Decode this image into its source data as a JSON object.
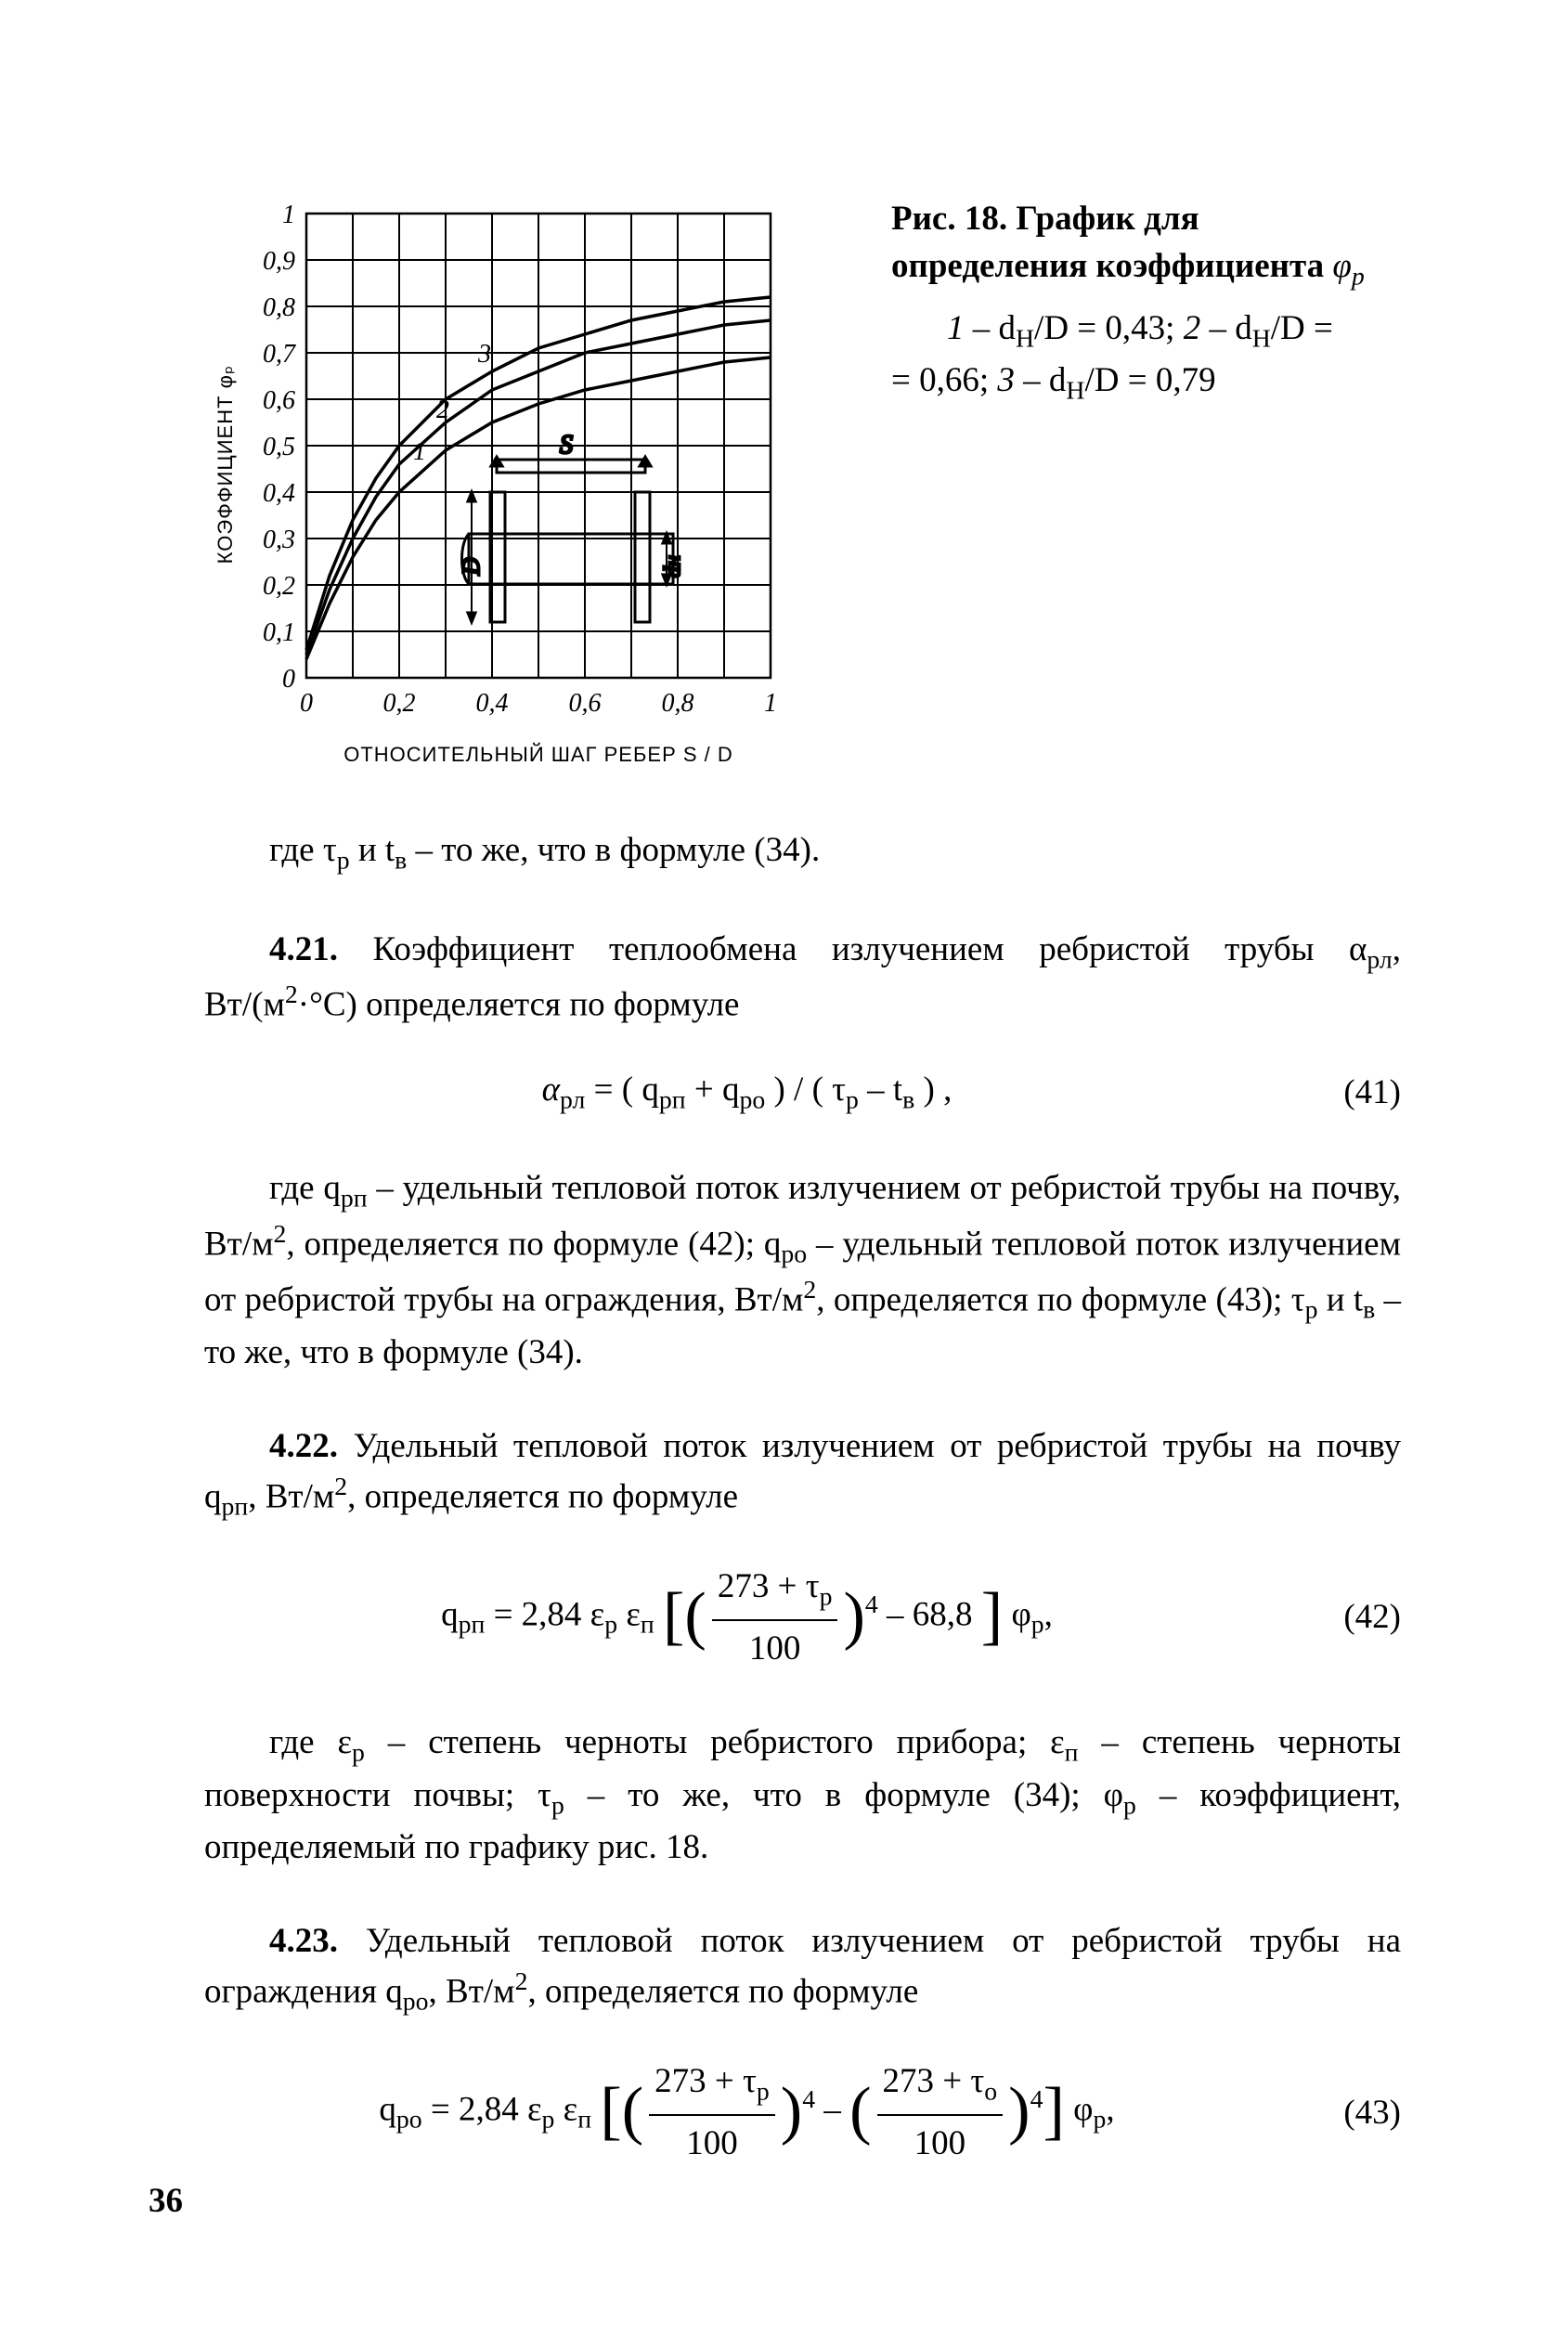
{
  "figure": {
    "type": "line",
    "title": "",
    "axis_x_label": "ОТНОСИТЕЛЬНЫЙ ШАГ РЕБЕР  S / D",
    "axis_y_label": "КОЭФФИЦИЕНТ  φₚ",
    "xlim": [
      0,
      1
    ],
    "ylim": [
      0,
      1
    ],
    "xticks": [
      "0",
      "0,2",
      "0,4",
      "0,6",
      "0,8",
      "1"
    ],
    "yticks": [
      "0",
      "0,1",
      "0,2",
      "0,3",
      "0,4",
      "0,5",
      "0,6",
      "0,7",
      "0,8",
      "0,9",
      "1"
    ],
    "grid_color": "#000000",
    "line_color": "#000000",
    "line_width": 3.5,
    "curve_labels": {
      "c1": "1",
      "c2": "2",
      "c3": "3"
    },
    "diagram_labels": {
      "D": "D",
      "dH": "dн",
      "S": "S"
    },
    "curves": {
      "c1": [
        [
          0.0,
          0.04
        ],
        [
          0.05,
          0.16
        ],
        [
          0.1,
          0.26
        ],
        [
          0.15,
          0.34
        ],
        [
          0.2,
          0.4
        ],
        [
          0.3,
          0.49
        ],
        [
          0.4,
          0.55
        ],
        [
          0.5,
          0.59
        ],
        [
          0.6,
          0.62
        ],
        [
          0.7,
          0.64
        ],
        [
          0.8,
          0.66
        ],
        [
          0.9,
          0.68
        ],
        [
          1.0,
          0.69
        ]
      ],
      "c2": [
        [
          0.0,
          0.05
        ],
        [
          0.05,
          0.19
        ],
        [
          0.1,
          0.3
        ],
        [
          0.15,
          0.39
        ],
        [
          0.2,
          0.46
        ],
        [
          0.3,
          0.55
        ],
        [
          0.4,
          0.62
        ],
        [
          0.5,
          0.66
        ],
        [
          0.6,
          0.7
        ],
        [
          0.7,
          0.72
        ],
        [
          0.8,
          0.74
        ],
        [
          0.9,
          0.76
        ],
        [
          1.0,
          0.77
        ]
      ],
      "c3": [
        [
          0.0,
          0.06
        ],
        [
          0.05,
          0.22
        ],
        [
          0.1,
          0.34
        ],
        [
          0.15,
          0.43
        ],
        [
          0.2,
          0.5
        ],
        [
          0.3,
          0.6
        ],
        [
          0.4,
          0.66
        ],
        [
          0.5,
          0.71
        ],
        [
          0.6,
          0.74
        ],
        [
          0.7,
          0.77
        ],
        [
          0.8,
          0.79
        ],
        [
          0.9,
          0.81
        ],
        [
          1.0,
          0.82
        ]
      ]
    }
  },
  "caption": {
    "lead": "Рис. 18. График для определения коэффициента ",
    "symbol_html": "φ<sub>р</sub>",
    "legend_line1_a": "1",
    "legend_line1_b": " – d",
    "legend_line1_c": "/D = 0,43;  ",
    "legend_line1_d": "2",
    "legend_line1_e": " – d",
    "legend_line1_f": "/D =",
    "legend_line2_a": " = 0,66;  ",
    "legend_line2_b": "3",
    "legend_line2_c": " – d",
    "legend_line2_d": "/D = 0,79",
    "sub_H": "Н"
  },
  "body": {
    "p_pre": "где τ",
    "p_pre2": " и t",
    "p_pre3": " – то же, что в формуле (34).",
    "sub_p": "р",
    "sub_v": "в",
    "p421a": "4.21.",
    "p421b": " Коэффициент теплообмена излучением ребристой трубы α",
    "p421c": ", Вт/(м",
    "p421d": "·°С) определяется по формуле",
    "sub_rl": "рл",
    "eq41_lhs": "α",
    "eq41_mid1": " = ( q",
    "eq41_mid2": " + q",
    "eq41_mid3": " ) / ( τ",
    "eq41_mid4": " – t",
    "eq41_mid5": " ) ,",
    "eq41_num": "(41)",
    "sub_rp": "рп",
    "sub_ro": "ро",
    "p41e_a": "где q",
    "p41e_b": " – удельный тепловой поток излучением от ребристой трубы на почву, Вт/м",
    "p41e_c": ", определяется по формуле (42);  q",
    "p41e_d": " – удельный тепловой поток излучением от ребристой трубы на ограждения, Вт/м",
    "p41e_e": ", определяется по формуле (43); τ",
    "p41e_f": " и t",
    "p41e_g": " – то же, что в формуле (34).",
    "p422a": "4.22.",
    "p422b": " Удельный тепловой поток излучением от ребристой трубы на почву q",
    "p422c": ", Вт/м",
    "p422d": ", определяется по формуле",
    "eq42_lhs": "q",
    "eq42_a": " = 2,84 ε",
    "eq42_b": " ε",
    "eq42_fr_num": "273 + τ",
    "eq42_fr_den": "100",
    "eq42_exp": "4",
    "eq42_tail": " – 68,8 ",
    "eq42_phi": " φ",
    "eq42_comma": ",",
    "eq42_num": "(42)",
    "sub_P": "п",
    "sub_pp": "р",
    "p42e_a": "где ε",
    "p42e_b": " – степень черноты ребристого прибора;  ε",
    "p42e_c": " – степень черноты поверхности почвы;  τ",
    "p42e_d": " – то же, что в формуле (34);  φ",
    "p42e_e": " – коэффициент, определяемый по графику рис. 18.",
    "p423a": "4.23.",
    "p423b": " Удельный тепловой поток излучением от ребристой трубы на ограждения q",
    "p423c": ", Вт/м",
    "p423d": ", определяется по формуле",
    "eq43_lhs": "q",
    "eq43_a": " = 2,84 ε",
    "eq43_b": " ε",
    "eq43_fr_num1": "273 + τ",
    "eq43_fr_den1": "100",
    "eq43_minus": " – ",
    "eq43_fr_num2": "273 + τ",
    "eq43_fr_den2": "100",
    "eq43_exp": "4",
    "eq43_phi": " φ",
    "eq43_comma": ",",
    "eq43_num": "(43)",
    "sub_o": "о"
  },
  "page_number": "36"
}
